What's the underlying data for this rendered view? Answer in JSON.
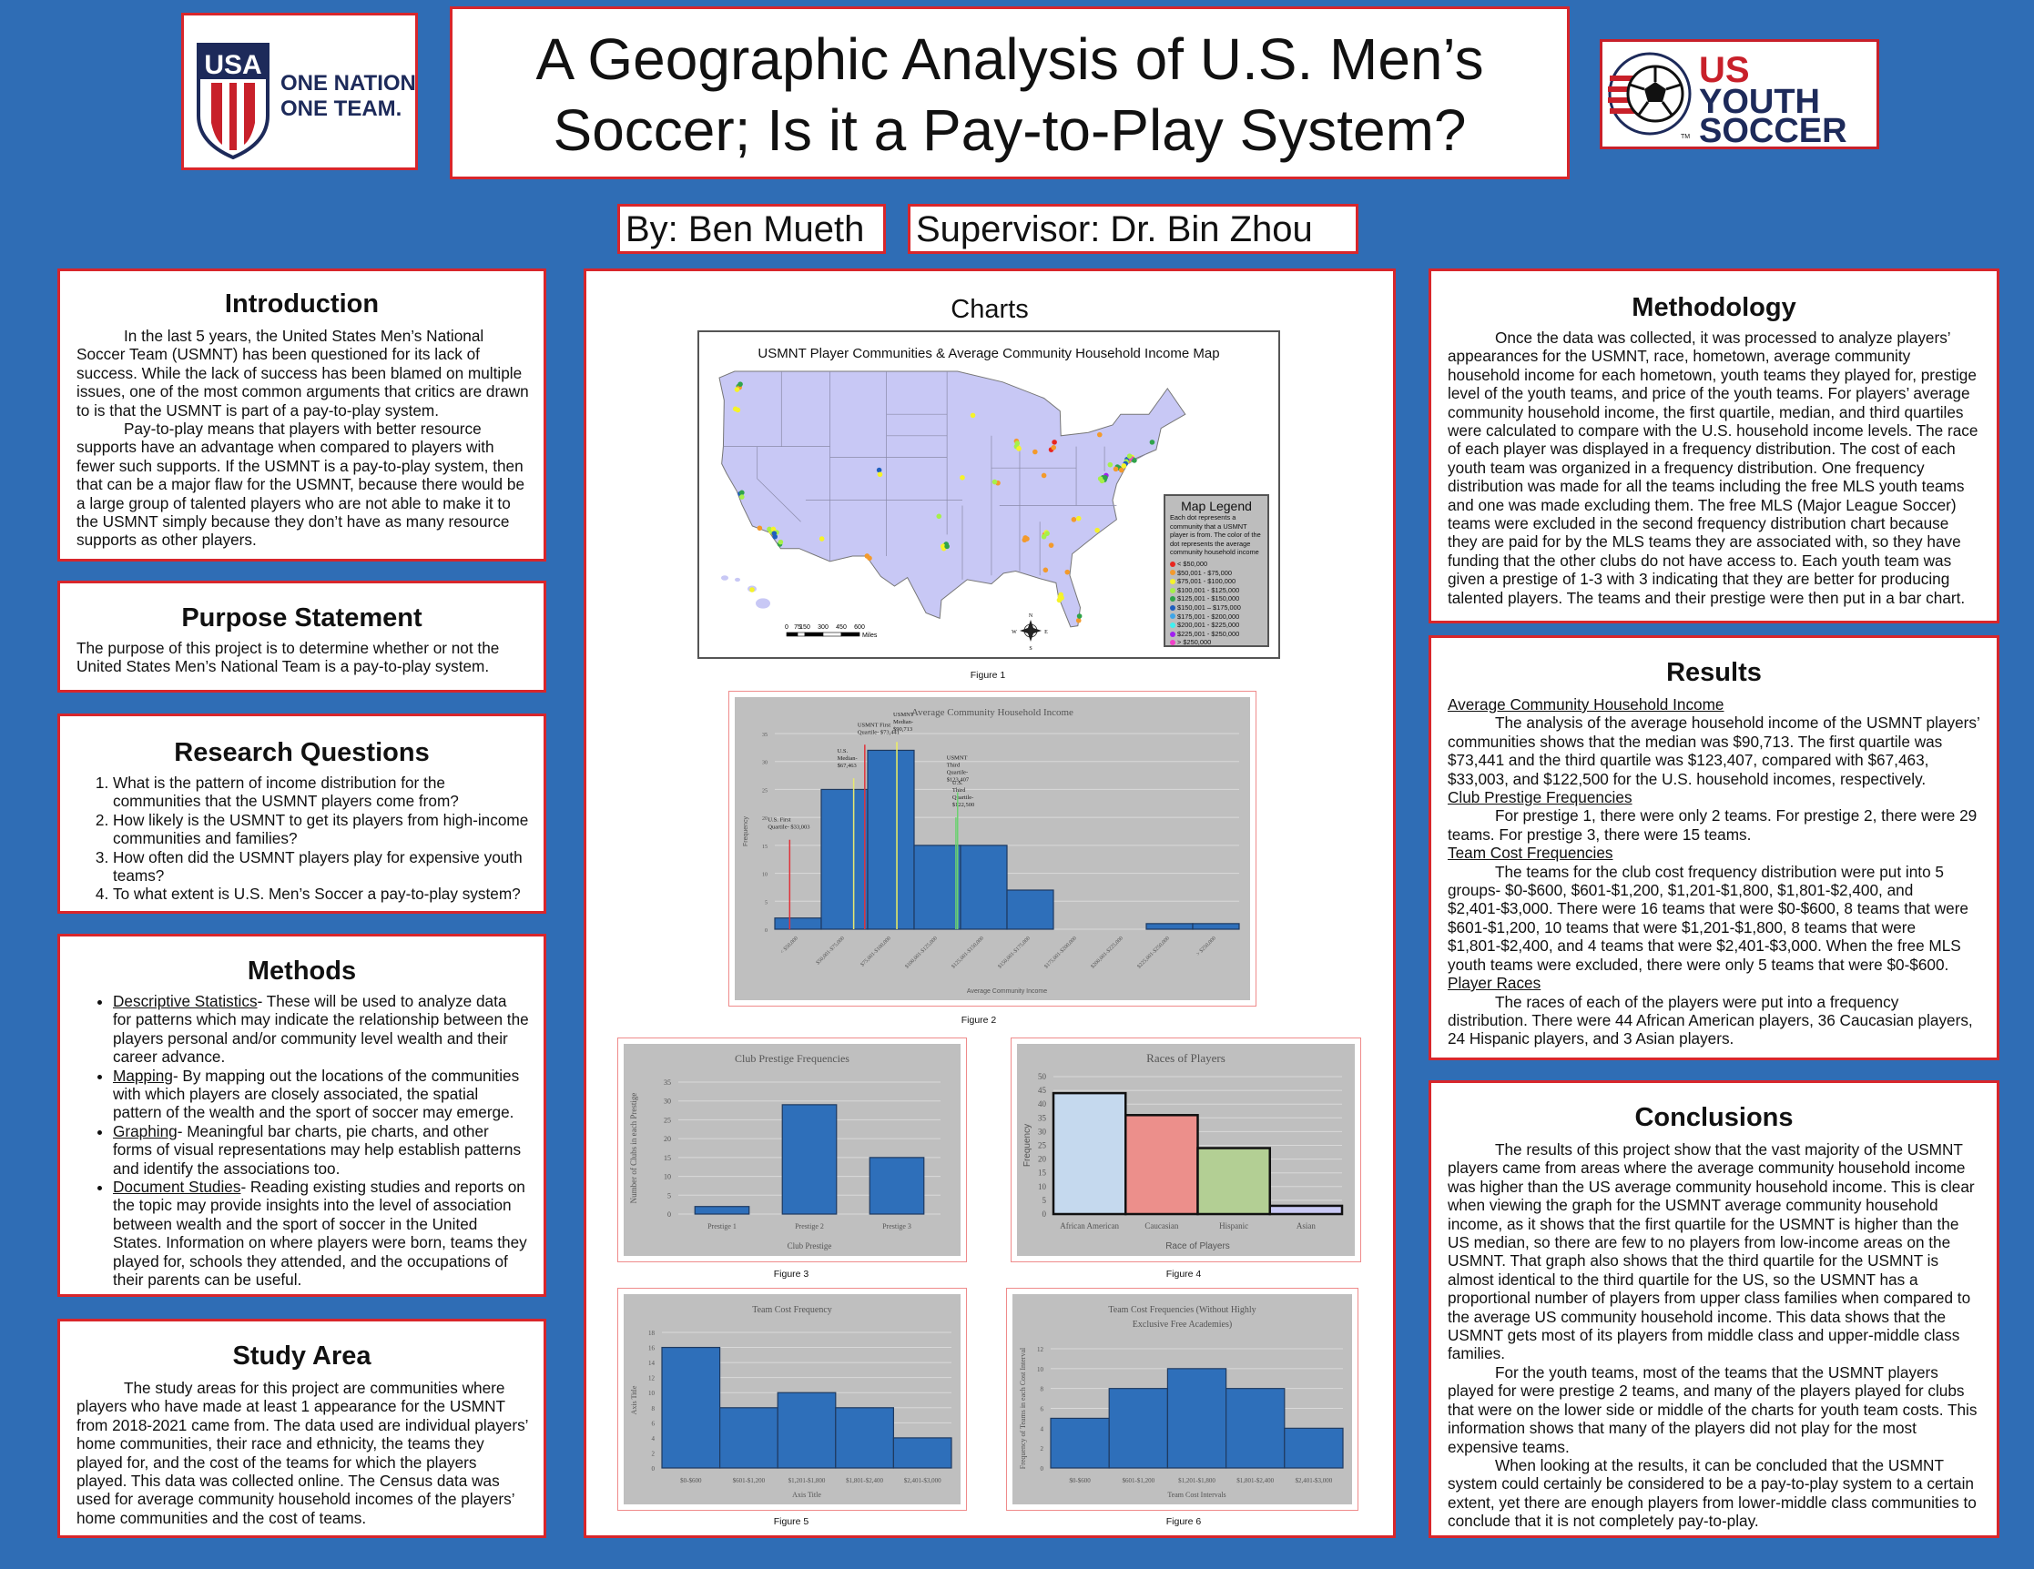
{
  "header": {
    "title_line1": "A Geographic Analysis of U.S. Men’s",
    "title_line2": "Soccer; Is it a Pay-to-Play System?",
    "author": "By: Ben Mueth",
    "supervisor": "Supervisor: Dr. Bin Zhou",
    "left_logo": {
      "text": "USA",
      "tagline1": "ONE NATION.",
      "tagline2": "ONE TEAM."
    },
    "right_logo": {
      "line1": "US",
      "line2": "YOUTH",
      "line3": "SOCCER",
      "tm": "TM"
    }
  },
  "colors": {
    "background": "#2f6db5",
    "border": "#d8262b",
    "bar": "#2e6fba",
    "map_land": "#c8c8f5"
  },
  "introduction": {
    "heading": "Introduction",
    "p1": "In the last 5 years, the United States Men’s National Soccer Team (USMNT) has been questioned for its lack of success. While the lack of success has been blamed on multiple issues, one of the most common arguments that critics are drawn to is that the USMNT is part of a pay-to-play system.",
    "p2": "Pay-to-play means that players with better resource supports have an advantage when compared to players with fewer such supports. If the USMNT is a pay-to-play system, then that can be a major flaw for the USMNT, because there would be a large group of talented players who are not able to make it to the USMNT simply because they don’t have as many resource supports as other players."
  },
  "purpose": {
    "heading": "Purpose Statement",
    "text": "The purpose of this project is to determine whether or not the United States Men’s National Team is a pay-to-play system."
  },
  "research": {
    "heading": "Research Questions",
    "items": [
      "What is the pattern of income distribution for the communities that the USMNT players come from?",
      "How likely is the USMNT to get its players from high-income communities and families?",
      "How often did the USMNT players play for expensive youth teams?",
      "To what extent is U.S. Men’s Soccer a pay-to-play system?"
    ]
  },
  "methods": {
    "heading": "Methods",
    "items": [
      {
        "term": "Descriptive Statistics",
        "text": "- These will be used to analyze data for patterns which may indicate the relationship between the players personal and/or community level wealth and their career advance."
      },
      {
        "term": "Mapping",
        "text": "- By mapping out the locations of the communities with which players are closely associated, the spatial pattern of the wealth and the sport of soccer may emerge."
      },
      {
        "term": "Graphing",
        "text": "- Meaningful bar charts, pie charts, and other forms of visual representations may help establish patterns and identify the associations too."
      },
      {
        "term": "Document Studies",
        "text": "- Reading existing studies and reports on the topic may provide insights into the level of association between wealth and the sport of soccer in the United States. Information on where players were born, teams they played for, schools they attended, and the occupations of their parents can be useful."
      }
    ]
  },
  "study_area": {
    "heading": "Study Area",
    "text": "The study areas for this project are communities where players who have made at least 1 appearance for the USMNT from 2018-2021 came from. The data used are individual players’ home communities, their race and ethnicity, the teams they played for, and the cost of the teams for which the players played. This data was collected online. The Census data was used for average community household incomes of the players’ home communities and the cost of teams."
  },
  "charts_section": {
    "heading": "Charts",
    "figure_labels": [
      "Figure 1",
      "Figure 2",
      "Figure 3",
      "Figure 4",
      "Figure 5",
      "Figure 6"
    ]
  },
  "map": {
    "title": "USMNT Player Communities & Average Community Household Income Map",
    "legend_title": "Map Legend",
    "legend_desc": "Each dot represents a community that a USMNT player is from. The color of the dot represents the average community household income",
    "legend": [
      {
        "label": "< $50,000",
        "color": "#e8261f"
      },
      {
        "label": "$50,001 - $75,000",
        "color": "#f39a2c"
      },
      {
        "label": "$75,001 - $100,000",
        "color": "#f5f32a"
      },
      {
        "label": "$100,001 - $125,000",
        "color": "#a6f04a"
      },
      {
        "label": "$125,001 - $150,000",
        "color": "#2fa34a"
      },
      {
        "label": "$150,001 – $175,000",
        "color": "#1f5fbf"
      },
      {
        "label": "$175,001 - $200,000",
        "color": "#3fa5e8"
      },
      {
        "label": "$200,001 - $225,000",
        "color": "#3ff0f0"
      },
      {
        "label": "$225,001 - $250,000",
        "color": "#a020f0"
      },
      {
        "label": "> $250,000",
        "color": "#f040c8"
      }
    ],
    "scale_ticks": [
      "0",
      "75",
      "150",
      "300",
      "450",
      "600"
    ],
    "scale_unit": "Miles",
    "compass": {
      "n": "N",
      "s": "S",
      "e": "E",
      "w": "W"
    },
    "points": [
      [
        -122.3,
        47.6,
        4
      ],
      [
        -122.2,
        47.5,
        1
      ],
      [
        -122.5,
        47.3,
        2
      ],
      [
        -122.1,
        47.8,
        4
      ],
      [
        -122.7,
        45.5,
        2
      ],
      [
        -122.4,
        45.4,
        2
      ],
      [
        -122.1,
        37.6,
        5
      ],
      [
        -121.9,
        37.7,
        4
      ],
      [
        -121.9,
        37.3,
        3
      ],
      [
        -118.3,
        34.1,
        2
      ],
      [
        -118.1,
        34.0,
        3
      ],
      [
        -117.9,
        33.8,
        1
      ],
      [
        -117.8,
        33.6,
        5
      ],
      [
        -117.6,
        34.0,
        3
      ],
      [
        -118.5,
        34.3,
        3
      ],
      [
        -119.7,
        34.4,
        1
      ],
      [
        -117.2,
        32.9,
        4
      ],
      [
        -117.1,
        33.1,
        3
      ],
      [
        -118.0,
        34.3,
        2
      ],
      [
        -117.9,
        33.9,
        5
      ],
      [
        -112.0,
        33.4,
        2
      ],
      [
        -104.9,
        39.8,
        5
      ],
      [
        -104.8,
        39.4,
        2
      ],
      [
        -93.3,
        44.9,
        2
      ],
      [
        -94.6,
        39.1,
        2
      ],
      [
        -90.2,
        38.6,
        1
      ],
      [
        -90.6,
        38.7,
        3
      ],
      [
        -87.7,
        41.9,
        2
      ],
      [
        -87.9,
        42.0,
        3
      ],
      [
        -87.6,
        41.8,
        2
      ],
      [
        -87.9,
        42.5,
        1
      ],
      [
        -87.8,
        42.3,
        3
      ],
      [
        -83.2,
        42.4,
        0
      ],
      [
        -83.6,
        41.7,
        0
      ],
      [
        -83.3,
        41.9,
        1
      ],
      [
        -84.5,
        39.3,
        1
      ],
      [
        -85.6,
        41.5,
        1
      ],
      [
        -77.6,
        43.1,
        1
      ],
      [
        -71.1,
        42.4,
        4
      ],
      [
        -74.0,
        40.7,
        1
      ],
      [
        -73.8,
        40.9,
        2
      ],
      [
        -74.2,
        40.8,
        5
      ],
      [
        -73.6,
        41.0,
        2
      ],
      [
        -74.3,
        40.6,
        3
      ],
      [
        -73.5,
        40.8,
        4
      ],
      [
        -73.7,
        40.9,
        9
      ],
      [
        -74.4,
        40.4,
        5
      ],
      [
        -73.9,
        41.1,
        3
      ],
      [
        -74.6,
        40.2,
        2
      ],
      [
        -73.3,
        40.7,
        4
      ],
      [
        -75.2,
        40.0,
        4
      ],
      [
        -75.4,
        40.1,
        4
      ],
      [
        -75.6,
        39.9,
        1
      ],
      [
        -76.3,
        40.3,
        3
      ],
      [
        -74.9,
        39.8,
        1
      ],
      [
        -77.0,
        38.9,
        4
      ],
      [
        -77.2,
        39.1,
        4
      ],
      [
        -76.8,
        39.3,
        8
      ],
      [
        -77.3,
        38.8,
        3
      ],
      [
        -77.5,
        39.0,
        3
      ],
      [
        -76.9,
        39.1,
        4
      ],
      [
        -80.8,
        35.2,
        1
      ],
      [
        -80.2,
        35.3,
        2
      ],
      [
        -77.9,
        34.2,
        2
      ],
      [
        -84.4,
        33.8,
        1
      ],
      [
        -84.2,
        34.0,
        2
      ],
      [
        -84.5,
        33.6,
        3
      ],
      [
        -84.1,
        33.9,
        3
      ],
      [
        -86.8,
        33.5,
        1
      ],
      [
        -86.6,
        33.4,
        1
      ],
      [
        -86.9,
        33.3,
        1
      ],
      [
        -83.6,
        32.8,
        1
      ],
      [
        -84.3,
        30.5,
        1
      ],
      [
        -81.6,
        30.3,
        1
      ],
      [
        -82.5,
        28.0,
        2
      ],
      [
        -82.3,
        27.9,
        2
      ],
      [
        -82.6,
        27.7,
        2
      ],
      [
        -82.4,
        28.2,
        2
      ],
      [
        -80.2,
        25.8,
        1
      ],
      [
        -80.1,
        26.2,
        4
      ],
      [
        -97.5,
        35.5,
        3
      ],
      [
        -96.8,
        32.8,
        2
      ],
      [
        -96.6,
        32.9,
        4
      ],
      [
        -97.0,
        32.7,
        2
      ],
      [
        -96.9,
        32.5,
        2
      ],
      [
        -96.5,
        32.7,
        4
      ],
      [
        -106.4,
        31.8,
        1
      ],
      [
        -106.1,
        31.6,
        1
      ],
      [
        -157.9,
        21.4,
        2
      ]
    ]
  },
  "methodology": {
    "heading": "Methodology",
    "text": "Once the data was collected, it was processed to analyze players’ appearances for the USMNT, race, hometown, average community household income for each hometown, youth teams they played for, prestige level of the youth teams, and price of the youth teams. For players’ average community household income, the first quartile, median, and third quartiles were calculated to compare with the U.S. household income levels. The race of each player was displayed in a frequency distribution. The cost of each youth team was organized in a frequency distribution. One frequency distribution was made for all the teams including the free MLS youth teams and one was made excluding them. The free MLS (Major League Soccer) teams were excluded in the second frequency distribution chart because they are paid for by the MLS teams they are associated with, so they have funding that the other clubs do not have access to. Each youth team was given a prestige of 1-3 with 3 indicating that they are better for producing talented players. The teams and their prestige were then put in a bar chart."
  },
  "results": {
    "heading": "Results",
    "sections": [
      {
        "title": "Average Community Household Income",
        "text": "The analysis of the average household income of the USMNT players’ communities shows that the median was $90,713. The first quartile was $73,441 and the third quartile was $123,407, compared with $67,463, $33,003, and $122,500 for the U.S. household incomes, respectively."
      },
      {
        "title": "Club Prestige Frequencies",
        "text": "For prestige 1, there were only 2 teams. For prestige 2, there were 29 teams. For prestige 3, there were 15 teams."
      },
      {
        "title": "Team Cost Frequencies",
        "text": "The teams for the club cost frequency distribution were put into 5 groups- $0-$600, $601-$1,200, $1,201-$1,800, $1,801-$2,400, and $2,401-$3,000. There were 16 teams that were $0-$600, 8 teams that were $601-$1,200, 10 teams that were $1,201-$1,800, 8 teams that were $1,801-$2,400, and 4 teams that were $2,401-$3,000. When the free MLS youth teams were excluded, there were only 5 teams that were $0-$600."
      },
      {
        "title": "Player Races",
        "text": "The races of each of the players were put into a frequency distribution. There were 44 African American players, 36 Caucasian players, 24 Hispanic players, and 3 Asian players."
      }
    ]
  },
  "conclusions": {
    "heading": "Conclusions",
    "p1": "The results of this project show that the vast majority of the USMNT players came from areas where the average community household income was higher than the US average community household income. This is clear when viewing the graph for the USMNT average community household income, as it shows that the first quartile for the USMNT is higher than the US median, so there are few to no players from low-income areas on the USMNT. That graph also shows that the third quartile for the USMNT is almost identical to the third quartile for the US, so the USMNT has a proportional number of players from upper class families when compared to the average US community household income. This data shows that the USMNT gets most of its players from middle class and upper-middle class families.",
    "p2": "For the youth teams, most of the teams that the USMNT players played for were prestige 2 teams, and many of the players played for clubs that were on the lower side or middle of the charts for youth team costs. This information  shows that many of the players did not play for the most expensive teams.",
    "p3": "When looking at the results, it can be concluded that the USMNT system could certainly be considered to be a pay-to-play system to a certain extent, yet there are enough players from lower-middle class communities to conclude that it is not completely pay-to-play."
  },
  "chart_data": [
    {
      "type": "bar",
      "title": "Average Community Household Income",
      "xlabel": "Average Community Income",
      "ylabel": "Frequency",
      "categories": [
        "< $50,000",
        "$50,001-$75,000",
        "$75,001-$100,000",
        "$100,001-$125,000",
        "$125,001-$150,000",
        "$150,001-$175,000",
        "$175,001-$200,000",
        "$200,001-$225,000",
        "$225,001-$250,000",
        "> $250,000"
      ],
      "values": [
        2,
        25,
        32,
        15,
        15,
        7,
        0,
        0,
        1,
        1
      ],
      "ylim": [
        0,
        35
      ],
      "yticks": [
        0,
        5,
        10,
        15,
        20,
        25,
        30,
        35
      ],
      "grid": true,
      "annotations": [
        {
          "lines": [
            "U.S. First",
            "Quartile- $33,003"
          ],
          "value": 33003,
          "color": "#e0323a"
        },
        {
          "lines": [
            "U.S.",
            "Median-",
            "$67,463"
          ],
          "value": 67463,
          "color": "#e8e870"
        },
        {
          "lines": [
            "USMNT First",
            "Quartile- $73,441"
          ],
          "value": 73441,
          "color": "#e0323a"
        },
        {
          "lines": [
            "USMNT",
            "Median-",
            "$90,713"
          ],
          "value": 90713,
          "color": "#f0f060"
        },
        {
          "lines": [
            "U.S.",
            "Third",
            "Quartile-",
            "$122,500"
          ],
          "value": 122500,
          "color": "#6cd070"
        },
        {
          "lines": [
            "USMNT",
            "Third",
            "Quartile-",
            "$123,407"
          ],
          "value": 123407,
          "color": "#6cd070"
        }
      ]
    },
    {
      "type": "bar",
      "title": "Club Prestige Frequencies",
      "xlabel": "Club Prestige",
      "ylabel": "Number of Clubs in each Prestige",
      "categories": [
        "Prestige 1",
        "Prestige 2",
        "Prestige 3"
      ],
      "values": [
        2,
        29,
        15
      ],
      "ylim": [
        0,
        35
      ],
      "yticks": [
        0,
        5,
        10,
        15,
        20,
        25,
        30,
        35
      ],
      "grid": true
    },
    {
      "type": "bar",
      "title": "Races of Players",
      "xlabel": "Race of Players",
      "ylabel": "Frequency",
      "categories": [
        "African American",
        "Caucasian",
        "Hispanic",
        "Asian"
      ],
      "values": [
        44,
        36,
        24,
        3
      ],
      "colors": [
        "#c5d9ee",
        "#ec8f8b",
        "#b3cf94",
        "#c9c9f5"
      ],
      "ylim": [
        0,
        50
      ],
      "yticks": [
        0,
        5,
        10,
        15,
        20,
        25,
        30,
        35,
        40,
        45,
        50
      ],
      "grid": true
    },
    {
      "type": "bar",
      "title": "Team Cost Frequency",
      "xlabel": "Axis Title",
      "ylabel": "Axis Title",
      "categories": [
        "$0-$600",
        "$601-$1,200",
        "$1,201-$1,800",
        "$1,801-$2,400",
        "$2,401-$3,000"
      ],
      "values": [
        16,
        8,
        10,
        8,
        4
      ],
      "ylim": [
        0,
        18
      ],
      "yticks": [
        0,
        2,
        4,
        6,
        8,
        10,
        12,
        14,
        16,
        18
      ],
      "grid": true
    },
    {
      "type": "bar",
      "title": "Team Cost Frequencies (Without Highly Exclusive Free Academies)",
      "xlabel": "Team Cost Intervals",
      "ylabel": "Frequency of Teams in each Cost Interval",
      "categories": [
        "$0-$600",
        "$601-$1,200",
        "$1,201-$1,800",
        "$1,801-$2,400",
        "$2,401-$3,000"
      ],
      "values": [
        5,
        8,
        10,
        8,
        4
      ],
      "ylim": [
        0,
        12
      ],
      "yticks": [
        0,
        2,
        4,
        6,
        8,
        10,
        12
      ],
      "grid": true
    }
  ]
}
